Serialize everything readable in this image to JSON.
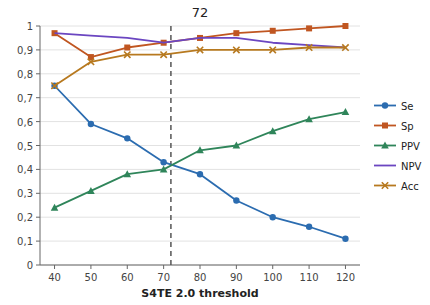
{
  "chart_data": {
    "type": "line",
    "title": "72",
    "x_label": "S4TE 2.0 threshold",
    "x": [
      40,
      50,
      60,
      70,
      80,
      90,
      100,
      110,
      120
    ],
    "series": [
      {
        "name": "Se",
        "marker": "circle",
        "values": [
          0.75,
          0.59,
          0.53,
          0.43,
          0.38,
          0.27,
          0.2,
          0.16,
          0.11
        ]
      },
      {
        "name": "Sp",
        "marker": "square",
        "values": [
          0.97,
          0.87,
          0.91,
          0.93,
          0.95,
          0.97,
          0.98,
          0.99,
          1.0
        ]
      },
      {
        "name": "PPV",
        "marker": "triangle",
        "values": [
          0.24,
          0.31,
          0.38,
          0.4,
          0.48,
          0.5,
          0.56,
          0.61,
          0.64
        ]
      },
      {
        "name": "NPV",
        "marker": "none",
        "values": [
          0.97,
          0.96,
          0.95,
          0.93,
          0.95,
          0.95,
          0.93,
          0.92,
          0.91
        ]
      },
      {
        "name": "Acc",
        "marker": "x",
        "values": [
          0.75,
          0.85,
          0.88,
          0.88,
          0.9,
          0.9,
          0.9,
          0.91,
          0.91
        ]
      }
    ],
    "vline": 72,
    "xlim": [
      36,
      124
    ],
    "xticks": [
      40,
      50,
      60,
      70,
      80,
      90,
      100,
      110,
      120
    ],
    "ylim": [
      0,
      1.0
    ],
    "yticks": [
      0,
      {
        "value": 0.1,
        "label": "0,1"
      },
      {
        "value": 0.2,
        "label": "0,2"
      },
      {
        "value": 0.3,
        "label": "0,3"
      },
      {
        "value": 0.4,
        "label": "0,4"
      },
      {
        "value": 0.5,
        "label": "0,5"
      },
      {
        "value": 0.6,
        "label": "0,6"
      },
      {
        "value": 0.7,
        "label": "0,7"
      },
      {
        "value": 0.8,
        "label": "0,8"
      },
      {
        "value": 0.9,
        "label": "0,9"
      },
      1
    ],
    "grid": "y",
    "legend": "right"
  }
}
